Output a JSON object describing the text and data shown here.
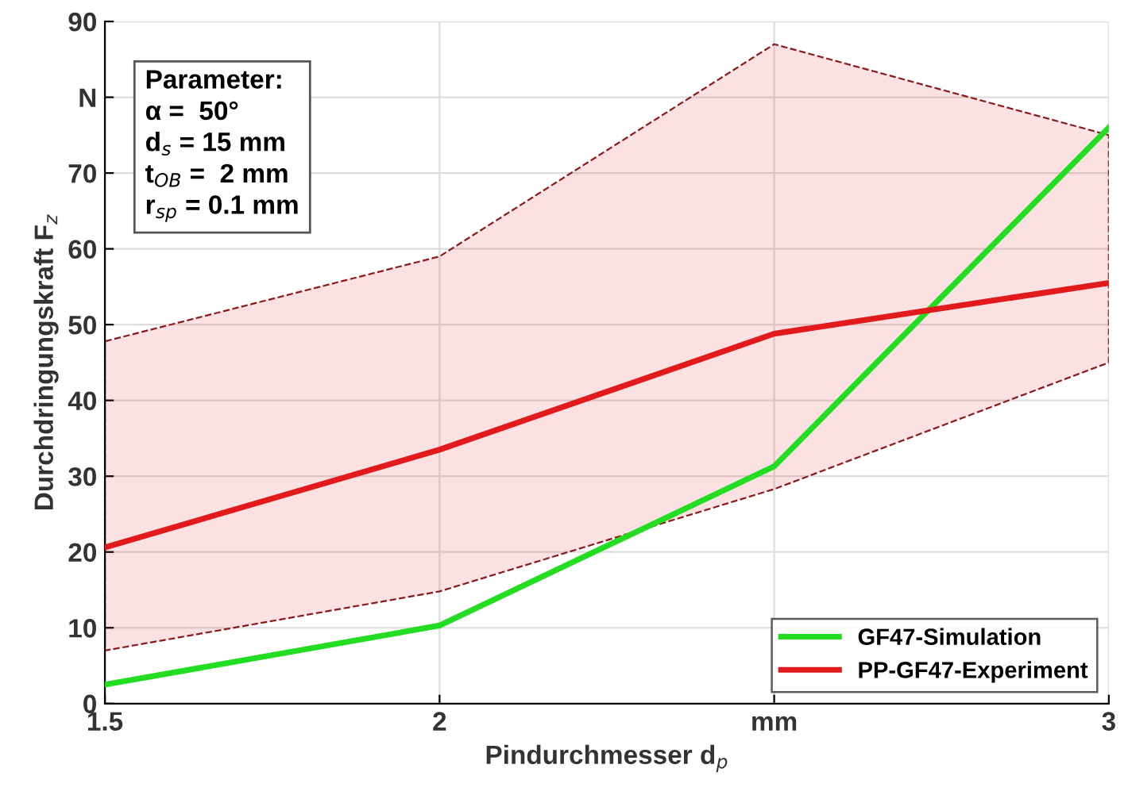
{
  "chart_data": {
    "type": "line",
    "xlabel": "Pindurchmesser d$_{p}$",
    "ylabel": "Durchdringungskraft F$_{z}$",
    "x": [
      1.5,
      2,
      2.5,
      3
    ],
    "series": [
      {
        "name": "GF47-Simulation",
        "color": "#22dd22",
        "values": [
          2.5,
          10.3,
          31.3,
          76
        ]
      },
      {
        "name": "PP-GF47-Experiment",
        "color": "#e31a1c",
        "values": [
          20.6,
          33.5,
          48.8,
          55.5
        ],
        "lower": [
          7,
          14.8,
          28.3,
          45
        ],
        "upper": [
          47.8,
          59,
          87,
          75
        ]
      }
    ],
    "annotations": [
      "Parameter:",
      "α =  50°",
      "d$_{s}$ = 15 mm",
      "t$_{OB}$ =  2 mm",
      "r$_{sp}$ = 0.1 mm"
    ],
    "xlim": [
      1.5,
      3
    ],
    "xticks": [
      1.5,
      2,
      {
        "value": 2.5,
        "label": "mm"
      },
      3
    ],
    "ylim": [
      0,
      90
    ],
    "yticks": [
      0,
      10,
      20,
      30,
      40,
      50,
      60,
      70,
      {
        "value": 80,
        "label": "N"
      },
      90
    ],
    "grid": true,
    "legend": "bottom right",
    "line_style": "solid",
    "marker": "none"
  }
}
